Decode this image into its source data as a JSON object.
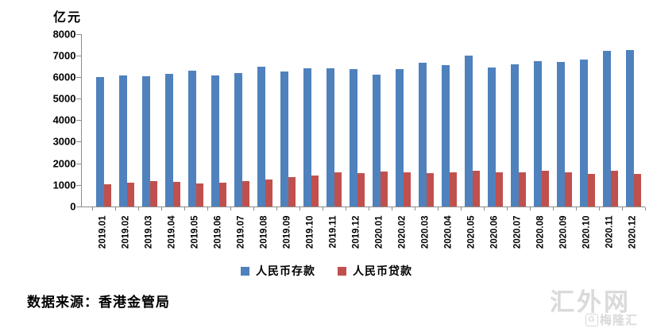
{
  "chart_data": {
    "type": "bar",
    "title": "",
    "ylabel": "亿元",
    "xlabel": "",
    "ylim": [
      0,
      8000
    ],
    "ytick_step": 1000,
    "yticks": [
      0,
      1000,
      2000,
      3000,
      4000,
      5000,
      6000,
      7000,
      8000
    ],
    "grid": false,
    "legend_position": "bottom-center",
    "categories": [
      "2019.01",
      "2019.02",
      "2019.03",
      "2019.04",
      "2019.05",
      "2019.06",
      "2019.07",
      "2019.08",
      "2019.09",
      "2019.10",
      "2019.11",
      "2019.12",
      "2020.01",
      "2020.02",
      "2020.03",
      "2020.04",
      "2020.05",
      "2020.06",
      "2020.07",
      "2020.08",
      "2020.09",
      "2020.10",
      "2020.11",
      "2020.12"
    ],
    "series": [
      {
        "name": "人民币存款",
        "color": "#4F81BD",
        "values": [
          6010,
          6080,
          6050,
          6130,
          6300,
          6060,
          6170,
          6470,
          6240,
          6400,
          6400,
          6370,
          6100,
          6370,
          6670,
          6550,
          6990,
          6430,
          6600,
          6730,
          6700,
          6810,
          7200,
          7250
        ]
      },
      {
        "name": "人民币贷款",
        "color": "#C0504D",
        "values": [
          1040,
          1100,
          1170,
          1130,
          1070,
          1100,
          1180,
          1260,
          1350,
          1440,
          1570,
          1530,
          1620,
          1600,
          1560,
          1600,
          1670,
          1600,
          1600,
          1650,
          1600,
          1520,
          1670,
          1500
        ]
      }
    ]
  },
  "footer": {
    "source": "数据来源：香港金管局"
  },
  "watermark": {
    "main": "汇外网",
    "small_logo_letter": "G",
    "small_text": "梅隆汇"
  },
  "axis_colors": {
    "line": "#8c8c8c",
    "text": "#000000"
  }
}
